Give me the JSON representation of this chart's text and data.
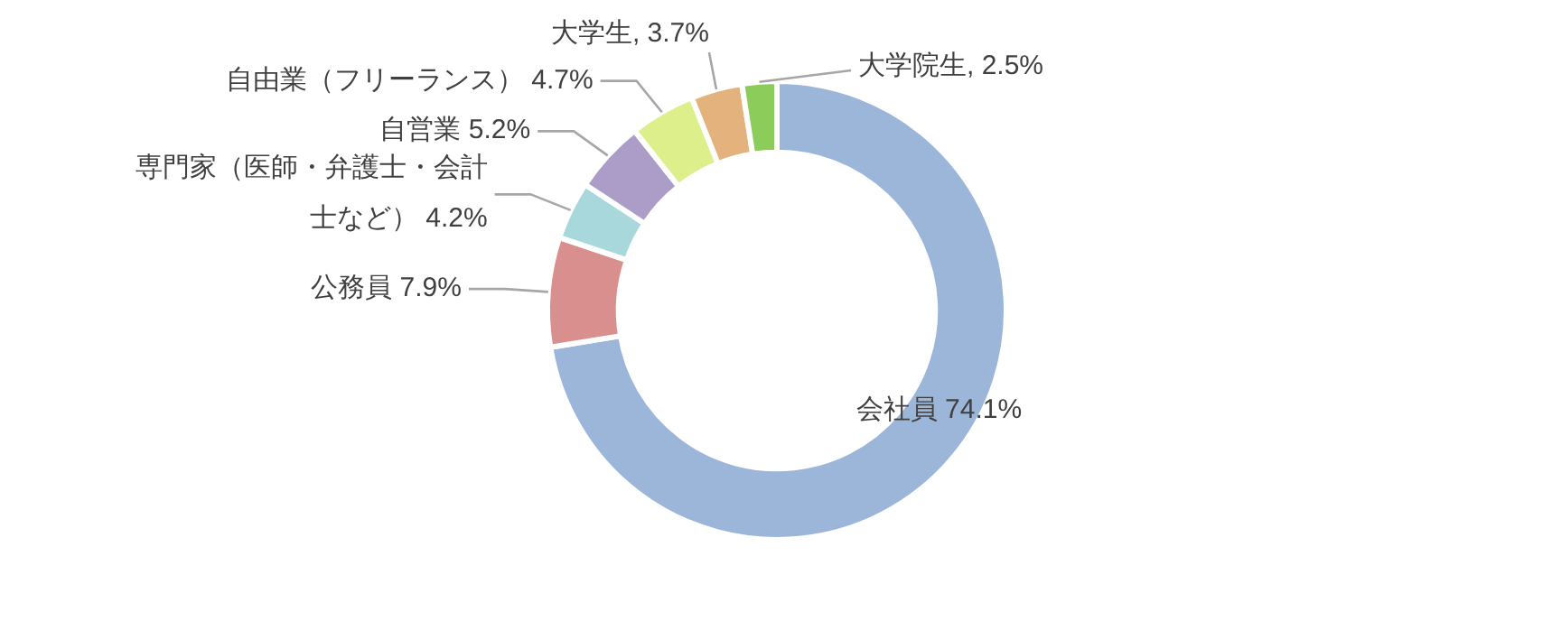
{
  "chart_data": {
    "type": "donut",
    "categories": [
      "会社員 74.1%",
      "公務員 7.9%",
      "専門家（医師・弁護士・会計士など） 4.2%",
      "自営業  5.2%",
      "自由業（フリーランス） 4.7%",
      "大学生, 3.7%",
      "大学院生, 2.5%"
    ],
    "values": [
      74.1,
      7.9,
      4.2,
      5.2,
      4.7,
      3.7,
      2.5
    ],
    "colors": [
      "#9cb6d9",
      "#d98f8d",
      "#a8d8dc",
      "#ab9cc8",
      "#dcef8a",
      "#e4b27c",
      "#8ccc5a"
    ]
  }
}
